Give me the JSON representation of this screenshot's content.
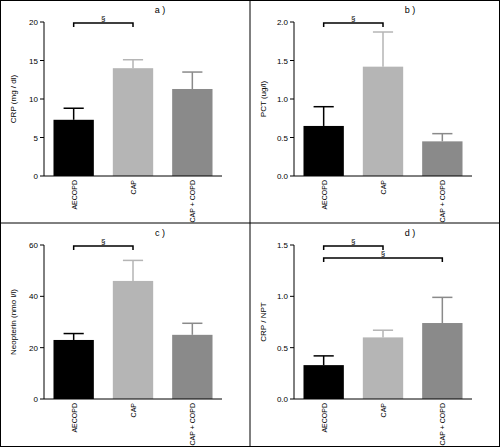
{
  "chart_data": [
    {
      "type": "bar",
      "title": "a )",
      "y_label": "CRP (mg / dl)",
      "categories": [
        "AECOPD",
        "CAP",
        "CAP + COPD"
      ],
      "values": [
        7.3,
        14,
        11.3
      ],
      "errors": [
        1.5,
        1.1,
        2.2
      ],
      "colors": [
        "#000000",
        "#b5b5b5",
        "#8a8a8a"
      ],
      "ylim": [
        0,
        20
      ],
      "yticks": [
        0,
        5,
        10,
        15,
        20
      ],
      "annotations": [
        {
          "from": "AECOPD",
          "to": "CAP",
          "label": "§"
        }
      ]
    },
    {
      "type": "bar",
      "title": "b )",
      "y_label": "PCT (ug/l)",
      "categories": [
        "AECOPD",
        "CAP",
        "CAP + COPD"
      ],
      "values": [
        0.65,
        1.42,
        0.45
      ],
      "errors": [
        0.25,
        0.45,
        0.1
      ],
      "colors": [
        "#000000",
        "#b5b5b5",
        "#8a8a8a"
      ],
      "ylim": [
        0,
        2
      ],
      "yticks": [
        {
          "value": 0,
          "label": "0.0"
        },
        {
          "value": 0.5,
          "label": "0.5"
        },
        {
          "value": 1,
          "label": "1.0"
        },
        {
          "value": 1.5,
          "label": "1.5"
        },
        {
          "value": 2,
          "label": "2.0"
        }
      ],
      "annotations": [
        {
          "from": "AECOPD",
          "to": "CAP",
          "label": "§"
        }
      ]
    },
    {
      "type": "bar",
      "title": "c )",
      "y_label": "Neopterin (nmo l/l)",
      "categories": [
        "AECOPD",
        "CAP",
        "CAP + COPD"
      ],
      "values": [
        23,
        46,
        25
      ],
      "errors": [
        2.5,
        8,
        4.5
      ],
      "colors": [
        "#000000",
        "#b5b5b5",
        "#8a8a8a"
      ],
      "ylim": [
        0,
        60
      ],
      "yticks": [
        0,
        20,
        40,
        60
      ],
      "annotations": [
        {
          "from": "AECOPD",
          "to": "CAP",
          "label": "§"
        }
      ]
    },
    {
      "type": "bar",
      "title": "d )",
      "y_label": "CRP / NPT",
      "categories": [
        "AECOPD",
        "CAP",
        "CAP + COPD"
      ],
      "values": [
        0.33,
        0.6,
        0.74
      ],
      "errors": [
        0.09,
        0.07,
        0.25
      ],
      "colors": [
        "#000000",
        "#b5b5b5",
        "#8a8a8a"
      ],
      "ylim": [
        0,
        1.5
      ],
      "yticks": [
        {
          "value": 0,
          "label": "0.0"
        },
        {
          "value": 0.5,
          "label": "0.5"
        },
        {
          "value": 1,
          "label": "1.0"
        },
        {
          "value": 1.5,
          "label": "1.5"
        }
      ],
      "annotations": [
        {
          "from": "AECOPD",
          "to": "CAP",
          "label": "§"
        },
        {
          "from": "AECOPD",
          "to": "CAP + COPD",
          "label": "§"
        }
      ]
    }
  ]
}
